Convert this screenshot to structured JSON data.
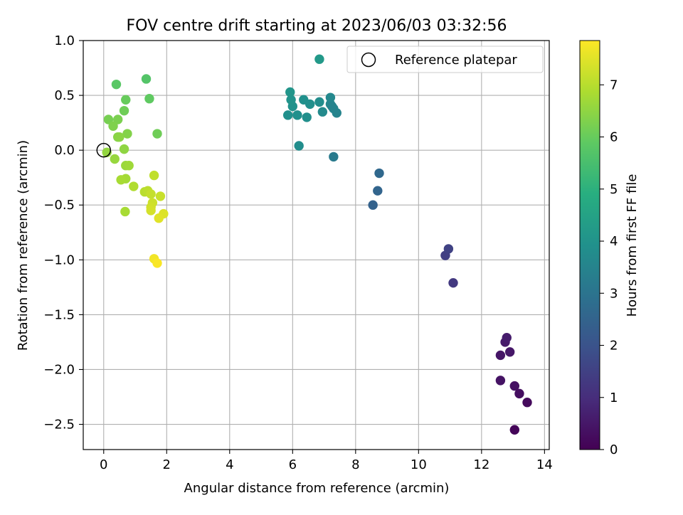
{
  "chart_data": {
    "type": "scatter",
    "title": "FOV centre drift starting at 2023/06/03 03:32:56",
    "xlabel": "Angular distance from reference (arcmin)",
    "ylabel": "Rotation from reference (arcmin)",
    "xlim": [
      -0.65,
      14.15
    ],
    "ylim": [
      -2.73,
      1.0
    ],
    "xticks": [
      0,
      2,
      4,
      6,
      8,
      10,
      12,
      14
    ],
    "yticks": [
      -2.5,
      -2.0,
      -1.5,
      -1.0,
      -0.5,
      0.0,
      0.5,
      1.0
    ],
    "xtick_labels": [
      "0",
      "2",
      "4",
      "6",
      "8",
      "10",
      "12",
      "14"
    ],
    "ytick_labels": [
      "−2.5",
      "−2.0",
      "−1.5",
      "−1.0",
      "−0.5",
      "0.0",
      "0.5",
      "1.0"
    ],
    "grid": true,
    "legend": {
      "placement": "top-right",
      "entries": [
        "Reference platepar"
      ]
    },
    "reference_point": {
      "x": 0.0,
      "y": 0.0
    },
    "colormap": "viridis",
    "colorbar": {
      "label": "Hours from first FF file",
      "range": [
        0,
        7.85
      ],
      "ticks": [
        0,
        1,
        2,
        3,
        4,
        5,
        6,
        7
      ],
      "tick_labels": [
        "0",
        "1",
        "2",
        "3",
        "4",
        "5",
        "6",
        "7"
      ]
    },
    "points": [
      {
        "x": 13.05,
        "y": -2.55,
        "hours": 0.1
      },
      {
        "x": 13.45,
        "y": -2.3,
        "hours": 0.2
      },
      {
        "x": 13.2,
        "y": -2.22,
        "hours": 0.3
      },
      {
        "x": 13.05,
        "y": -2.15,
        "hours": 0.35
      },
      {
        "x": 12.6,
        "y": -2.1,
        "hours": 0.4
      },
      {
        "x": 12.6,
        "y": -1.87,
        "hours": 0.45
      },
      {
        "x": 12.9,
        "y": -1.84,
        "hours": 0.5
      },
      {
        "x": 12.75,
        "y": -1.75,
        "hours": 0.55
      },
      {
        "x": 12.8,
        "y": -1.71,
        "hours": 0.6
      },
      {
        "x": 11.1,
        "y": -1.21,
        "hours": 1.3
      },
      {
        "x": 10.85,
        "y": -0.96,
        "hours": 1.45
      },
      {
        "x": 10.95,
        "y": -0.9,
        "hours": 1.55
      },
      {
        "x": 8.55,
        "y": -0.5,
        "hours": 2.45
      },
      {
        "x": 8.7,
        "y": -0.37,
        "hours": 2.55
      },
      {
        "x": 8.75,
        "y": -0.21,
        "hours": 2.65
      },
      {
        "x": 7.3,
        "y": -0.06,
        "hours": 3.2
      },
      {
        "x": 6.2,
        "y": 0.04,
        "hours": 3.8
      },
      {
        "x": 5.85,
        "y": 0.32,
        "hours": 3.9
      },
      {
        "x": 6.15,
        "y": 0.32,
        "hours": 3.9
      },
      {
        "x": 6.45,
        "y": 0.3,
        "hours": 3.85
      },
      {
        "x": 6.0,
        "y": 0.4,
        "hours": 3.95
      },
      {
        "x": 5.95,
        "y": 0.46,
        "hours": 4.0
      },
      {
        "x": 5.92,
        "y": 0.53,
        "hours": 4.05
      },
      {
        "x": 6.35,
        "y": 0.46,
        "hours": 3.9
      },
      {
        "x": 6.55,
        "y": 0.42,
        "hours": 3.85
      },
      {
        "x": 6.85,
        "y": 0.44,
        "hours": 3.8
      },
      {
        "x": 6.95,
        "y": 0.35,
        "hours": 3.7
      },
      {
        "x": 7.2,
        "y": 0.48,
        "hours": 3.65
      },
      {
        "x": 7.2,
        "y": 0.42,
        "hours": 3.6
      },
      {
        "x": 7.3,
        "y": 0.38,
        "hours": 3.55
      },
      {
        "x": 7.25,
        "y": 0.4,
        "hours": 3.5
      },
      {
        "x": 7.4,
        "y": 0.34,
        "hours": 3.5
      },
      {
        "x": 6.85,
        "y": 0.83,
        "hours": 4.2
      },
      {
        "x": 1.35,
        "y": 0.65,
        "hours": 5.7
      },
      {
        "x": 0.4,
        "y": 0.6,
        "hours": 5.8
      },
      {
        "x": 1.45,
        "y": 0.47,
        "hours": 5.9
      },
      {
        "x": 0.7,
        "y": 0.46,
        "hours": 6.0
      },
      {
        "x": 0.65,
        "y": 0.36,
        "hours": 6.1
      },
      {
        "x": 0.15,
        "y": 0.28,
        "hours": 6.2
      },
      {
        "x": 0.45,
        "y": 0.28,
        "hours": 6.25
      },
      {
        "x": 0.3,
        "y": 0.22,
        "hours": 6.3
      },
      {
        "x": 1.7,
        "y": 0.15,
        "hours": 6.1
      },
      {
        "x": 0.75,
        "y": 0.15,
        "hours": 6.35
      },
      {
        "x": 0.45,
        "y": 0.12,
        "hours": 6.4
      },
      {
        "x": 0.5,
        "y": 0.12,
        "hours": 6.45
      },
      {
        "x": 0.65,
        "y": 0.01,
        "hours": 6.5
      },
      {
        "x": 0.1,
        "y": -0.02,
        "hours": 6.55
      },
      {
        "x": 0.35,
        "y": -0.08,
        "hours": 6.6
      },
      {
        "x": 0.7,
        "y": -0.14,
        "hours": 6.65
      },
      {
        "x": 0.8,
        "y": -0.14,
        "hours": 6.7
      },
      {
        "x": 0.7,
        "y": -0.26,
        "hours": 6.75
      },
      {
        "x": 0.55,
        "y": -0.27,
        "hours": 6.8
      },
      {
        "x": 0.95,
        "y": -0.33,
        "hours": 6.9
      },
      {
        "x": 1.3,
        "y": -0.38,
        "hours": 7.0
      },
      {
        "x": 1.4,
        "y": -0.37,
        "hours": 7.05
      },
      {
        "x": 1.6,
        "y": -0.23,
        "hours": 7.1
      },
      {
        "x": 1.5,
        "y": -0.4,
        "hours": 7.15
      },
      {
        "x": 1.8,
        "y": -0.42,
        "hours": 7.2
      },
      {
        "x": 0.68,
        "y": -0.56,
        "hours": 6.8
      },
      {
        "x": 1.55,
        "y": -0.48,
        "hours": 7.25
      },
      {
        "x": 1.5,
        "y": -0.52,
        "hours": 7.3
      },
      {
        "x": 1.5,
        "y": -0.55,
        "hours": 7.35
      },
      {
        "x": 1.9,
        "y": -0.58,
        "hours": 7.45
      },
      {
        "x": 1.75,
        "y": -0.62,
        "hours": 7.5
      },
      {
        "x": 1.6,
        "y": -0.99,
        "hours": 7.7
      },
      {
        "x": 1.7,
        "y": -1.03,
        "hours": 7.8
      }
    ]
  }
}
